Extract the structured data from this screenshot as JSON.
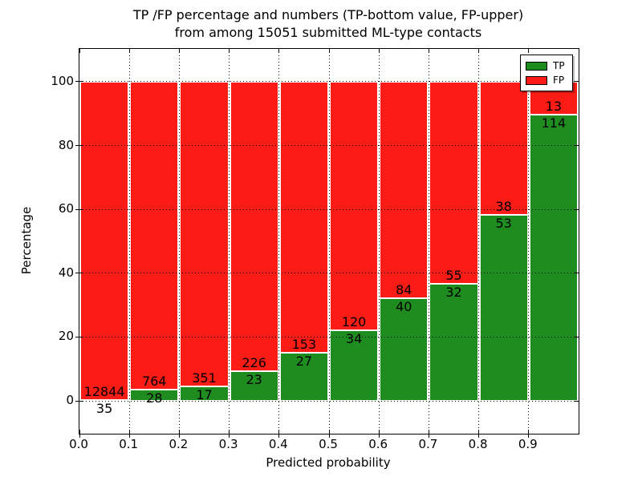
{
  "title": {
    "line1": "TP /FP percentage and numbers (TP-bottom value, FP-upper)",
    "line2": "from among 15051 submitted ML-type contacts"
  },
  "chart_data": {
    "type": "bar",
    "stacked": true,
    "normalized_to_percent": true,
    "title": "TP /FP percentage and numbers (TP-bottom value, FP-upper) from among 15051 submitted ML-type contacts",
    "xlabel": "Predicted probability",
    "ylabel": "Percentage",
    "total_contacts": 15051,
    "bins": [
      "0.0-0.1",
      "0.1-0.2",
      "0.2-0.3",
      "0.3-0.4",
      "0.4-0.5",
      "0.5-0.6",
      "0.6-0.7",
      "0.7-0.8",
      "0.8-0.9",
      "0.9-1.0"
    ],
    "series": [
      {
        "name": "TP",
        "color": "#1f8c1f",
        "values": [
          35,
          28,
          17,
          23,
          27,
          34,
          40,
          32,
          53,
          114
        ]
      },
      {
        "name": "FP",
        "color": "#fb1d15",
        "values": [
          12844,
          764,
          351,
          226,
          153,
          120,
          84,
          55,
          38,
          13
        ]
      }
    ],
    "xticklabels": [
      "0.0",
      "0.1",
      "0.2",
      "0.3",
      "0.4",
      "0.5",
      "0.6",
      "0.7",
      "0.8",
      "0.9"
    ],
    "yticks": [
      0,
      20,
      40,
      60,
      80,
      100
    ],
    "xlim": [
      0.0,
      1.0
    ],
    "ylim": [
      -10.3,
      110.3
    ],
    "grid": "dotted",
    "legend": {
      "position": "upper right",
      "entries": [
        "TP",
        "FP"
      ]
    }
  }
}
